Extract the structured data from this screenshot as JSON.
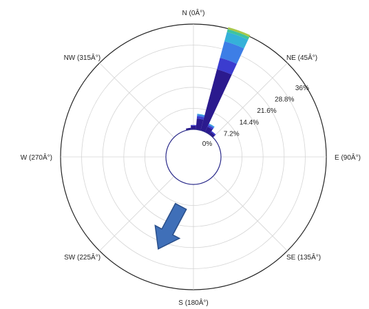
{
  "chart_data": {
    "type": "wind_rose",
    "directions": [
      {
        "key": "N",
        "label": "N (0Â°)",
        "angle": 0
      },
      {
        "key": "NE",
        "label": "NE (45Â°)",
        "angle": 45
      },
      {
        "key": "E",
        "label": "E (90Â°)",
        "angle": 90
      },
      {
        "key": "SE",
        "label": "SE (135Â°)",
        "angle": 135
      },
      {
        "key": "S",
        "label": "S (180Â°)",
        "angle": 180
      },
      {
        "key": "SW",
        "label": "SW (225Â°)",
        "angle": 225
      },
      {
        "key": "W",
        "label": "W (270Â°)",
        "angle": 270
      },
      {
        "key": "NW",
        "label": "NW (315Â°)",
        "angle": 315
      }
    ],
    "ring_values": [
      0,
      7.2,
      14.4,
      21.6,
      28.8,
      36
    ],
    "ring_labels": [
      "0%",
      "7.2%",
      "14.4%",
      "21.6%",
      "28.8%",
      "36%"
    ],
    "r_max": 36,
    "unit": "%",
    "bin_colors": [
      "#2b1a8e",
      "#3b3ccf",
      "#3d7ee6",
      "#35b1d9",
      "#3dc3a0",
      "#a8c84a"
    ],
    "sectors": [
      {
        "direction": 20,
        "width": 10,
        "cumulative": [
          21.6,
          25.7,
          31.5,
          34.8,
          35.8,
          36.5
        ]
      },
      {
        "direction": 10,
        "width": 10,
        "cumulative": [
          3.8,
          4.6,
          5.2,
          5.4
        ]
      },
      {
        "direction": 30,
        "width": 10,
        "cumulative": [
          2.0,
          2.6,
          3.0,
          3.2
        ]
      },
      {
        "direction": 40,
        "width": 10,
        "cumulative": [
          1.0,
          1.4
        ]
      },
      {
        "direction": 0,
        "width": 10,
        "cumulative": [
          1.2,
          1.5
        ]
      },
      {
        "direction": 350,
        "width": 10,
        "cumulative": [
          0.6
        ]
      }
    ],
    "annotation": {
      "type": "arrow",
      "direction": 225,
      "color": "#3f6fb8",
      "outline": "#2a4f8a"
    }
  }
}
